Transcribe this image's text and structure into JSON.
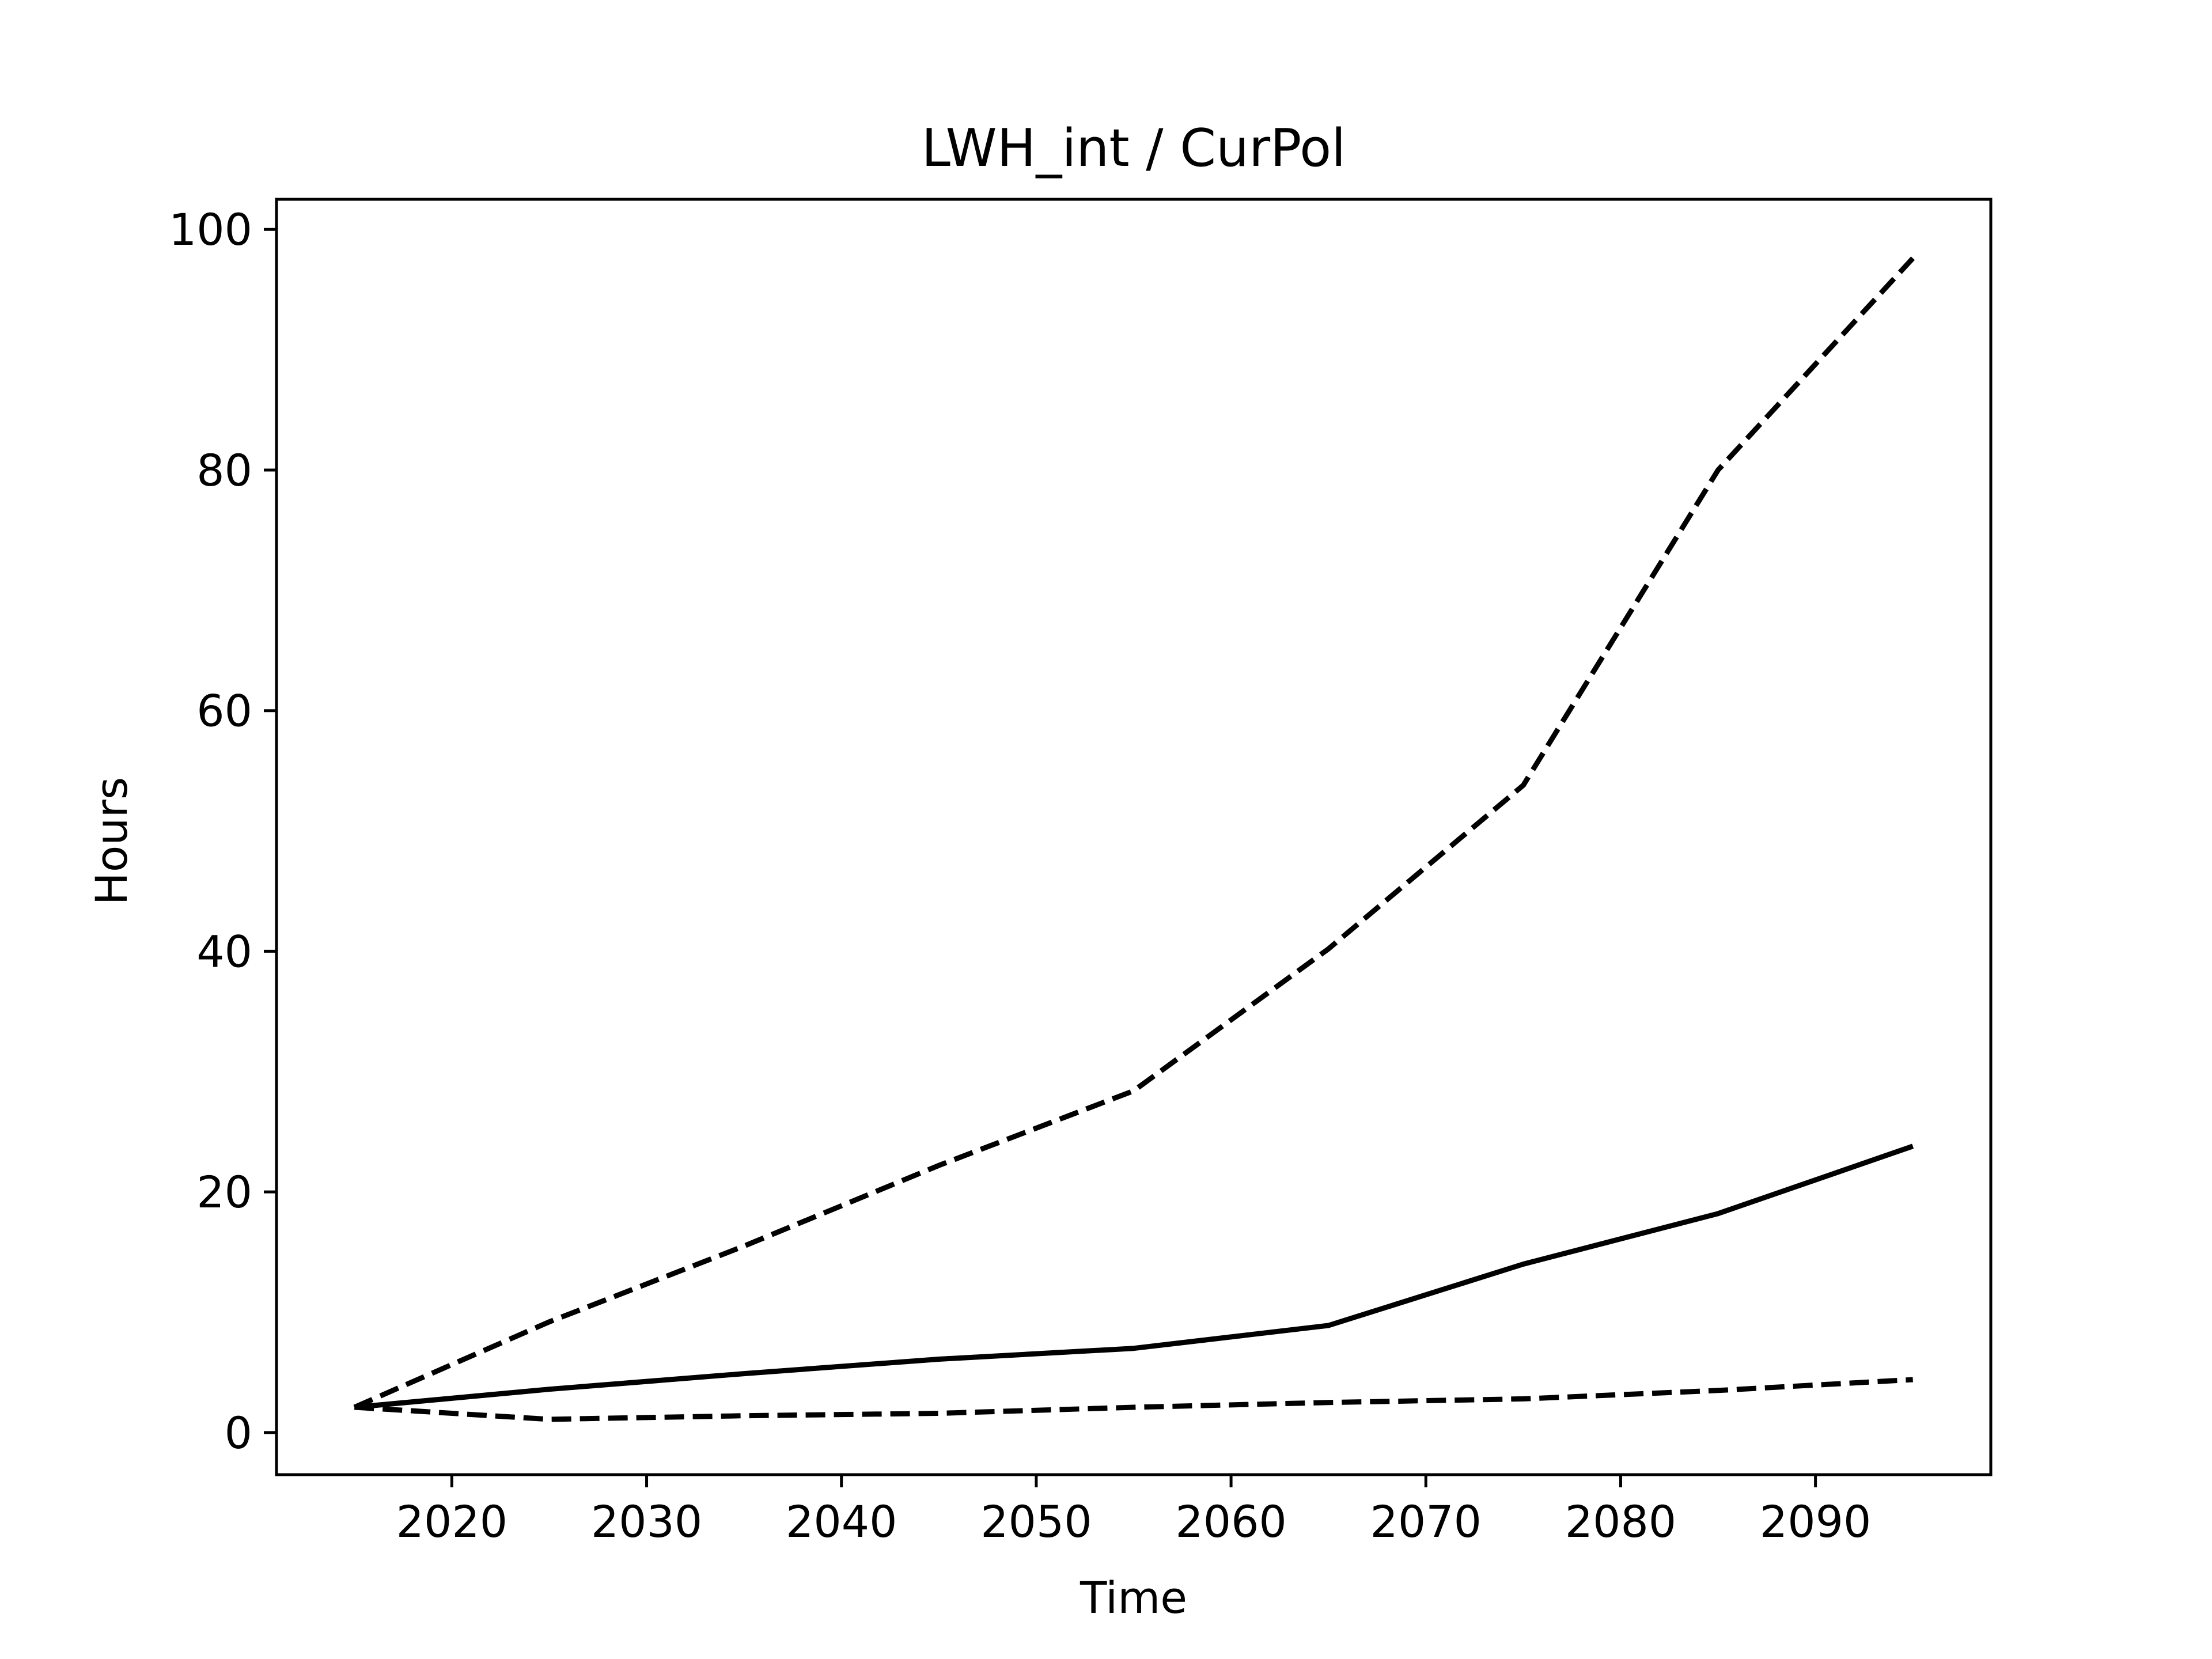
{
  "chart_data": {
    "type": "line",
    "title": "LWH_int / CurPol",
    "xlabel": "Time",
    "ylabel": "Hours",
    "xlim": [
      2011,
      2099
    ],
    "ylim": [
      -3.5,
      102.5
    ],
    "xticks": [
      2020,
      2030,
      2040,
      2050,
      2060,
      2070,
      2080,
      2090
    ],
    "yticks": [
      0,
      20,
      40,
      60,
      80,
      100
    ],
    "grid": false,
    "legend": "none",
    "color": "#000000",
    "series": [
      {
        "style": "dashed",
        "x": [
          2015,
          2025,
          2035,
          2045,
          2055,
          2065,
          2075,
          2085,
          2095
        ],
        "y": [
          2.1,
          9.2,
          15.5,
          22.2,
          28.4,
          40.2,
          53.8,
          80.0,
          97.6
        ]
      },
      {
        "style": "solid",
        "x": [
          2015,
          2025,
          2035,
          2045,
          2055,
          2065,
          2075,
          2085,
          2095
        ],
        "y": [
          2.1,
          3.6,
          4.9,
          6.1,
          7.0,
          8.9,
          14.0,
          18.2,
          23.8
        ]
      },
      {
        "style": "dashed",
        "x": [
          2015,
          2025,
          2035,
          2045,
          2055,
          2065,
          2075,
          2085,
          2095
        ],
        "y": [
          2.1,
          1.1,
          1.4,
          1.6,
          2.1,
          2.5,
          2.8,
          3.5,
          4.4
        ]
      }
    ]
  }
}
